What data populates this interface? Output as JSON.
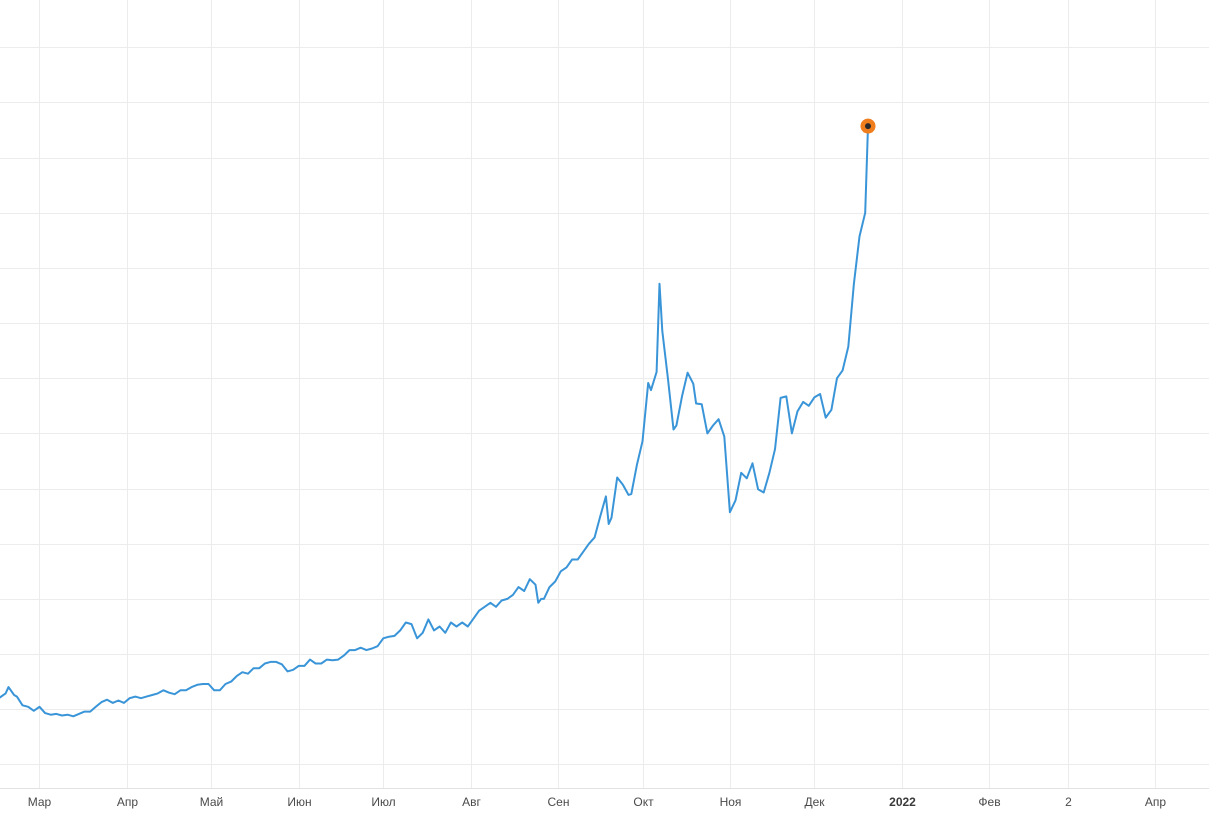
{
  "chart_data": {
    "type": "line",
    "title": "",
    "xlabel": "",
    "ylabel": "",
    "grid": true,
    "y_tick_labels_visible": false,
    "xlim": [
      "2021-02-15",
      "2022-04-20"
    ],
    "ylim": [
      0,
      1
    ],
    "x_ticks": [
      {
        "date": "2021-03-01",
        "label": "Мар",
        "bold": false
      },
      {
        "date": "2021-04-01",
        "label": "Апр",
        "bold": false
      },
      {
        "date": "2021-05-01",
        "label": "Май",
        "bold": false
      },
      {
        "date": "2021-06-01",
        "label": "Июн",
        "bold": false
      },
      {
        "date": "2021-07-01",
        "label": "Июл",
        "bold": false
      },
      {
        "date": "2021-08-01",
        "label": "Авг",
        "bold": false
      },
      {
        "date": "2021-09-01",
        "label": "Сен",
        "bold": false
      },
      {
        "date": "2021-10-01",
        "label": "Окт",
        "bold": false
      },
      {
        "date": "2021-11-01",
        "label": "Ноя",
        "bold": false
      },
      {
        "date": "2021-12-01",
        "label": "Дек",
        "bold": false
      },
      {
        "date": "2022-01-01",
        "label": "2022",
        "bold": true
      },
      {
        "date": "2022-02-01",
        "label": "Фев",
        "bold": false
      },
      {
        "date": "2022-03-01",
        "label": "2",
        "bold": false
      },
      {
        "date": "2022-04-01",
        "label": "Апр",
        "bold": false
      }
    ],
    "y_gridlines": [
      0.03,
      0.1,
      0.17,
      0.24,
      0.31,
      0.38,
      0.45,
      0.52,
      0.59,
      0.66,
      0.73,
      0.8,
      0.87,
      0.94,
      1.01
    ],
    "series": [
      {
        "color": "#3a95d8",
        "last_point_marker": {
          "fill": "#f07e1d",
          "center": "#2a2a2a"
        },
        "points": [
          [
            "2021-02-15",
            0.115
          ],
          [
            "2021-02-17",
            0.12
          ],
          [
            "2021-02-18",
            0.128
          ],
          [
            "2021-02-20",
            0.118
          ],
          [
            "2021-02-21",
            0.116
          ],
          [
            "2021-02-23",
            0.105
          ],
          [
            "2021-02-25",
            0.103
          ],
          [
            "2021-02-27",
            0.098
          ],
          [
            "2021-03-01",
            0.103
          ],
          [
            "2021-03-03",
            0.095
          ],
          [
            "2021-03-05",
            0.093
          ],
          [
            "2021-03-07",
            0.094
          ],
          [
            "2021-03-09",
            0.092
          ],
          [
            "2021-03-11",
            0.093
          ],
          [
            "2021-03-13",
            0.091
          ],
          [
            "2021-03-15",
            0.094
          ],
          [
            "2021-03-17",
            0.097
          ],
          [
            "2021-03-19",
            0.097
          ],
          [
            "2021-03-21",
            0.103
          ],
          [
            "2021-03-23",
            0.109
          ],
          [
            "2021-03-25",
            0.112
          ],
          [
            "2021-03-27",
            0.108
          ],
          [
            "2021-03-29",
            0.111
          ],
          [
            "2021-03-31",
            0.108
          ],
          [
            "2021-04-02",
            0.114
          ],
          [
            "2021-04-04",
            0.116
          ],
          [
            "2021-04-06",
            0.114
          ],
          [
            "2021-04-08",
            0.116
          ],
          [
            "2021-04-10",
            0.118
          ],
          [
            "2021-04-12",
            0.12
          ],
          [
            "2021-04-14",
            0.124
          ],
          [
            "2021-04-16",
            0.121
          ],
          [
            "2021-04-18",
            0.119
          ],
          [
            "2021-04-20",
            0.124
          ],
          [
            "2021-04-22",
            0.124
          ],
          [
            "2021-04-24",
            0.128
          ],
          [
            "2021-04-26",
            0.131
          ],
          [
            "2021-04-28",
            0.132
          ],
          [
            "2021-04-30",
            0.132
          ],
          [
            "2021-05-02",
            0.124
          ],
          [
            "2021-05-04",
            0.124
          ],
          [
            "2021-05-06",
            0.132
          ],
          [
            "2021-05-08",
            0.135
          ],
          [
            "2021-05-10",
            0.142
          ],
          [
            "2021-05-12",
            0.147
          ],
          [
            "2021-05-14",
            0.145
          ],
          [
            "2021-05-16",
            0.152
          ],
          [
            "2021-05-18",
            0.152
          ],
          [
            "2021-05-20",
            0.158
          ],
          [
            "2021-05-22",
            0.16
          ],
          [
            "2021-05-24",
            0.16
          ],
          [
            "2021-05-26",
            0.157
          ],
          [
            "2021-05-28",
            0.148
          ],
          [
            "2021-05-30",
            0.15
          ],
          [
            "2021-06-01",
            0.155
          ],
          [
            "2021-06-03",
            0.155
          ],
          [
            "2021-06-05",
            0.163
          ],
          [
            "2021-06-07",
            0.158
          ],
          [
            "2021-06-09",
            0.158
          ],
          [
            "2021-06-11",
            0.163
          ],
          [
            "2021-06-13",
            0.162
          ],
          [
            "2021-06-15",
            0.163
          ],
          [
            "2021-06-17",
            0.168
          ],
          [
            "2021-06-19",
            0.175
          ],
          [
            "2021-06-21",
            0.175
          ],
          [
            "2021-06-23",
            0.178
          ],
          [
            "2021-06-25",
            0.175
          ],
          [
            "2021-06-27",
            0.177
          ],
          [
            "2021-06-29",
            0.18
          ],
          [
            "2021-07-01",
            0.19
          ],
          [
            "2021-07-03",
            0.192
          ],
          [
            "2021-07-05",
            0.193
          ],
          [
            "2021-07-07",
            0.2
          ],
          [
            "2021-07-09",
            0.21
          ],
          [
            "2021-07-11",
            0.208
          ],
          [
            "2021-07-13",
            0.19
          ],
          [
            "2021-07-15",
            0.197
          ],
          [
            "2021-07-17",
            0.214
          ],
          [
            "2021-07-19",
            0.2
          ],
          [
            "2021-07-21",
            0.205
          ],
          [
            "2021-07-23",
            0.197
          ],
          [
            "2021-07-25",
            0.21
          ],
          [
            "2021-07-27",
            0.205
          ],
          [
            "2021-07-29",
            0.21
          ],
          [
            "2021-07-31",
            0.205
          ],
          [
            "2021-08-02",
            0.215
          ],
          [
            "2021-08-04",
            0.225
          ],
          [
            "2021-08-06",
            0.23
          ],
          [
            "2021-08-08",
            0.235
          ],
          [
            "2021-08-10",
            0.23
          ],
          [
            "2021-08-12",
            0.238
          ],
          [
            "2021-08-14",
            0.24
          ],
          [
            "2021-08-16",
            0.245
          ],
          [
            "2021-08-18",
            0.255
          ],
          [
            "2021-08-20",
            0.25
          ],
          [
            "2021-08-22",
            0.265
          ],
          [
            "2021-08-24",
            0.258
          ],
          [
            "2021-08-25",
            0.235
          ],
          [
            "2021-08-26",
            0.24
          ],
          [
            "2021-08-27",
            0.24
          ],
          [
            "2021-08-29",
            0.255
          ],
          [
            "2021-08-31",
            0.262
          ],
          [
            "2021-09-02",
            0.275
          ],
          [
            "2021-09-04",
            0.28
          ],
          [
            "2021-09-06",
            0.29
          ],
          [
            "2021-09-08",
            0.29
          ],
          [
            "2021-09-10",
            0.3
          ],
          [
            "2021-09-12",
            0.31
          ],
          [
            "2021-09-14",
            0.318
          ],
          [
            "2021-09-16",
            0.345
          ],
          [
            "2021-09-18",
            0.37
          ],
          [
            "2021-09-19",
            0.335
          ],
          [
            "2021-09-20",
            0.343
          ],
          [
            "2021-09-22",
            0.394
          ],
          [
            "2021-09-24",
            0.385
          ],
          [
            "2021-09-26",
            0.372
          ],
          [
            "2021-09-27",
            0.373
          ],
          [
            "2021-09-29",
            0.41
          ],
          [
            "2021-10-01",
            0.44
          ],
          [
            "2021-10-03",
            0.514
          ],
          [
            "2021-10-04",
            0.505
          ],
          [
            "2021-10-06",
            0.528
          ],
          [
            "2021-10-07",
            0.64
          ],
          [
            "2021-10-08",
            0.58
          ],
          [
            "2021-10-10",
            0.52
          ],
          [
            "2021-10-12",
            0.455
          ],
          [
            "2021-10-13",
            0.46
          ],
          [
            "2021-10-15",
            0.497
          ],
          [
            "2021-10-16",
            0.512
          ],
          [
            "2021-10-17",
            0.527
          ],
          [
            "2021-10-19",
            0.513
          ],
          [
            "2021-10-20",
            0.488
          ],
          [
            "2021-10-22",
            0.487
          ],
          [
            "2021-10-24",
            0.45
          ],
          [
            "2021-10-26",
            0.46
          ],
          [
            "2021-10-28",
            0.468
          ],
          [
            "2021-10-30",
            0.446
          ],
          [
            "2021-11-01",
            0.35
          ],
          [
            "2021-11-03",
            0.365
          ],
          [
            "2021-11-05",
            0.4
          ],
          [
            "2021-11-07",
            0.393
          ],
          [
            "2021-11-09",
            0.412
          ],
          [
            "2021-11-11",
            0.379
          ],
          [
            "2021-11-13",
            0.375
          ],
          [
            "2021-11-15",
            0.4
          ],
          [
            "2021-11-17",
            0.43
          ],
          [
            "2021-11-19",
            0.495
          ],
          [
            "2021-11-21",
            0.497
          ],
          [
            "2021-11-23",
            0.45
          ],
          [
            "2021-11-25",
            0.478
          ],
          [
            "2021-11-27",
            0.49
          ],
          [
            "2021-11-29",
            0.485
          ],
          [
            "2021-12-01",
            0.496
          ],
          [
            "2021-12-03",
            0.5
          ],
          [
            "2021-12-05",
            0.47
          ],
          [
            "2021-12-07",
            0.48
          ],
          [
            "2021-12-09",
            0.52
          ],
          [
            "2021-12-11",
            0.53
          ],
          [
            "2021-12-13",
            0.56
          ],
          [
            "2021-12-15",
            0.64
          ],
          [
            "2021-12-17",
            0.7
          ],
          [
            "2021-12-19",
            0.73
          ],
          [
            "2021-12-20",
            0.84
          ]
        ]
      }
    ]
  }
}
